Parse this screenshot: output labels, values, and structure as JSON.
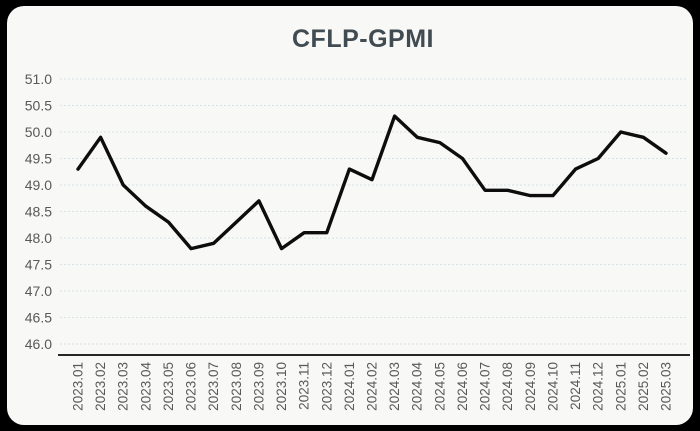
{
  "chart_data": {
    "type": "line",
    "title": "CFLP-GPMI",
    "categories": [
      "2023.01",
      "2023.02",
      "2023.03",
      "2023.04",
      "2023.05",
      "2023.06",
      "2023.07",
      "2023.08",
      "2023.09",
      "2023.10",
      "2023.11",
      "2023.12",
      "2024.01",
      "2024.02",
      "2024.03",
      "2024.04",
      "2024.05",
      "2024.06",
      "2024.07",
      "2024.08",
      "2024.09",
      "2024.10",
      "2024.11",
      "2024.12",
      "2025.01",
      "2025.02",
      "2025.03"
    ],
    "values": [
      49.3,
      49.9,
      49.0,
      48.6,
      48.3,
      47.8,
      47.9,
      48.3,
      48.7,
      47.8,
      48.1,
      48.1,
      49.3,
      49.1,
      50.3,
      49.9,
      49.8,
      49.5,
      48.9,
      48.9,
      48.8,
      48.8,
      49.3,
      49.5,
      50.0,
      49.9,
      49.6
    ],
    "xlabel": "",
    "ylabel": "",
    "ylim": [
      46.0,
      51.0
    ],
    "ytick_step": 0.5,
    "yticks": [
      "51.0",
      "50.5",
      "50.0",
      "49.5",
      "49.0",
      "48.5",
      "48.0",
      "47.5",
      "47.0",
      "46.5",
      "46.0"
    ],
    "grid": "horizontal-dashed",
    "legend": "none"
  },
  "colors": {
    "background": "#000000",
    "card": "#f8f8f6",
    "title": "#414b52",
    "axis_label": "#595959",
    "gridline": "#d6e2e6",
    "line": "#0d0d0d",
    "axis_line": "#262626"
  }
}
